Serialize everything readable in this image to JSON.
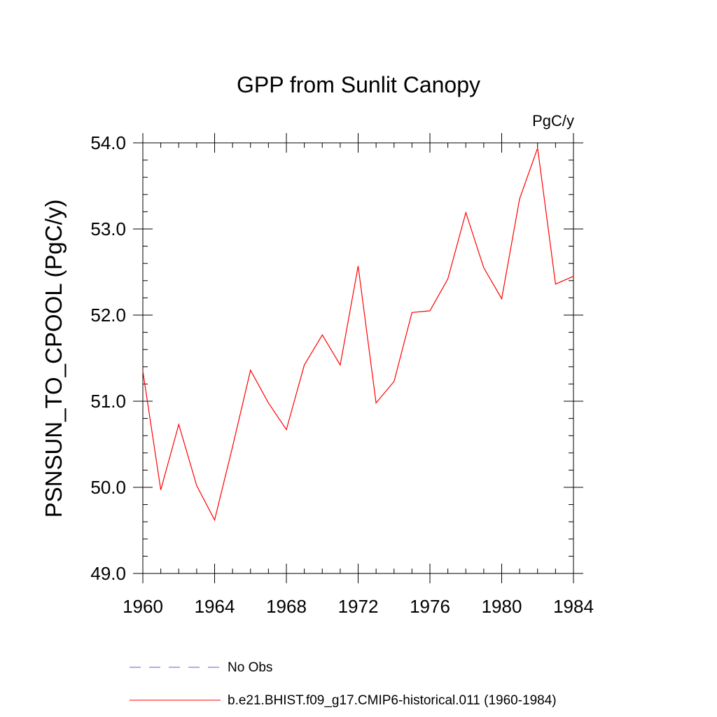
{
  "chart_data": {
    "type": "line",
    "title": "GPP from Sunlit Canopy",
    "units_label": "PgC/y",
    "ylabel": "PSNSUN_TO_CPOOL  (PgC/y)",
    "xlabel": "",
    "xlim": [
      1960,
      1984
    ],
    "ylim": [
      49.0,
      54.0
    ],
    "x_ticks": [
      1960,
      1964,
      1968,
      1972,
      1976,
      1980,
      1984
    ],
    "x_tick_labels": [
      "1960",
      "1964",
      "1968",
      "1972",
      "1976",
      "1980",
      "1984"
    ],
    "y_ticks": [
      49.0,
      50.0,
      51.0,
      52.0,
      53.0,
      54.0
    ],
    "y_tick_labels": [
      "49.0",
      "50.0",
      "51.0",
      "52.0",
      "53.0",
      "54.0"
    ],
    "grid": false,
    "legend_position": "bottom",
    "series": [
      {
        "name": "No Obs",
        "color": "#6a5acd",
        "dash": "dashed",
        "x": [],
        "values": []
      },
      {
        "name": "b.e21.BHIST.f09_g17.CMIP6-historical.011 (1960-1984)",
        "color": "#ff0000",
        "dash": "solid",
        "x": [
          1960,
          1961,
          1962,
          1963,
          1964,
          1965,
          1966,
          1967,
          1968,
          1969,
          1970,
          1971,
          1972,
          1973,
          1974,
          1975,
          1976,
          1977,
          1978,
          1979,
          1980,
          1981,
          1982,
          1983,
          1984
        ],
        "values": [
          51.35,
          49.97,
          50.73,
          50.02,
          49.62,
          50.47,
          51.36,
          50.98,
          50.67,
          51.42,
          51.77,
          51.42,
          52.57,
          50.98,
          51.23,
          52.03,
          52.05,
          52.42,
          53.19,
          52.55,
          52.19,
          53.35,
          53.94,
          52.36,
          52.45
        ]
      }
    ]
  }
}
